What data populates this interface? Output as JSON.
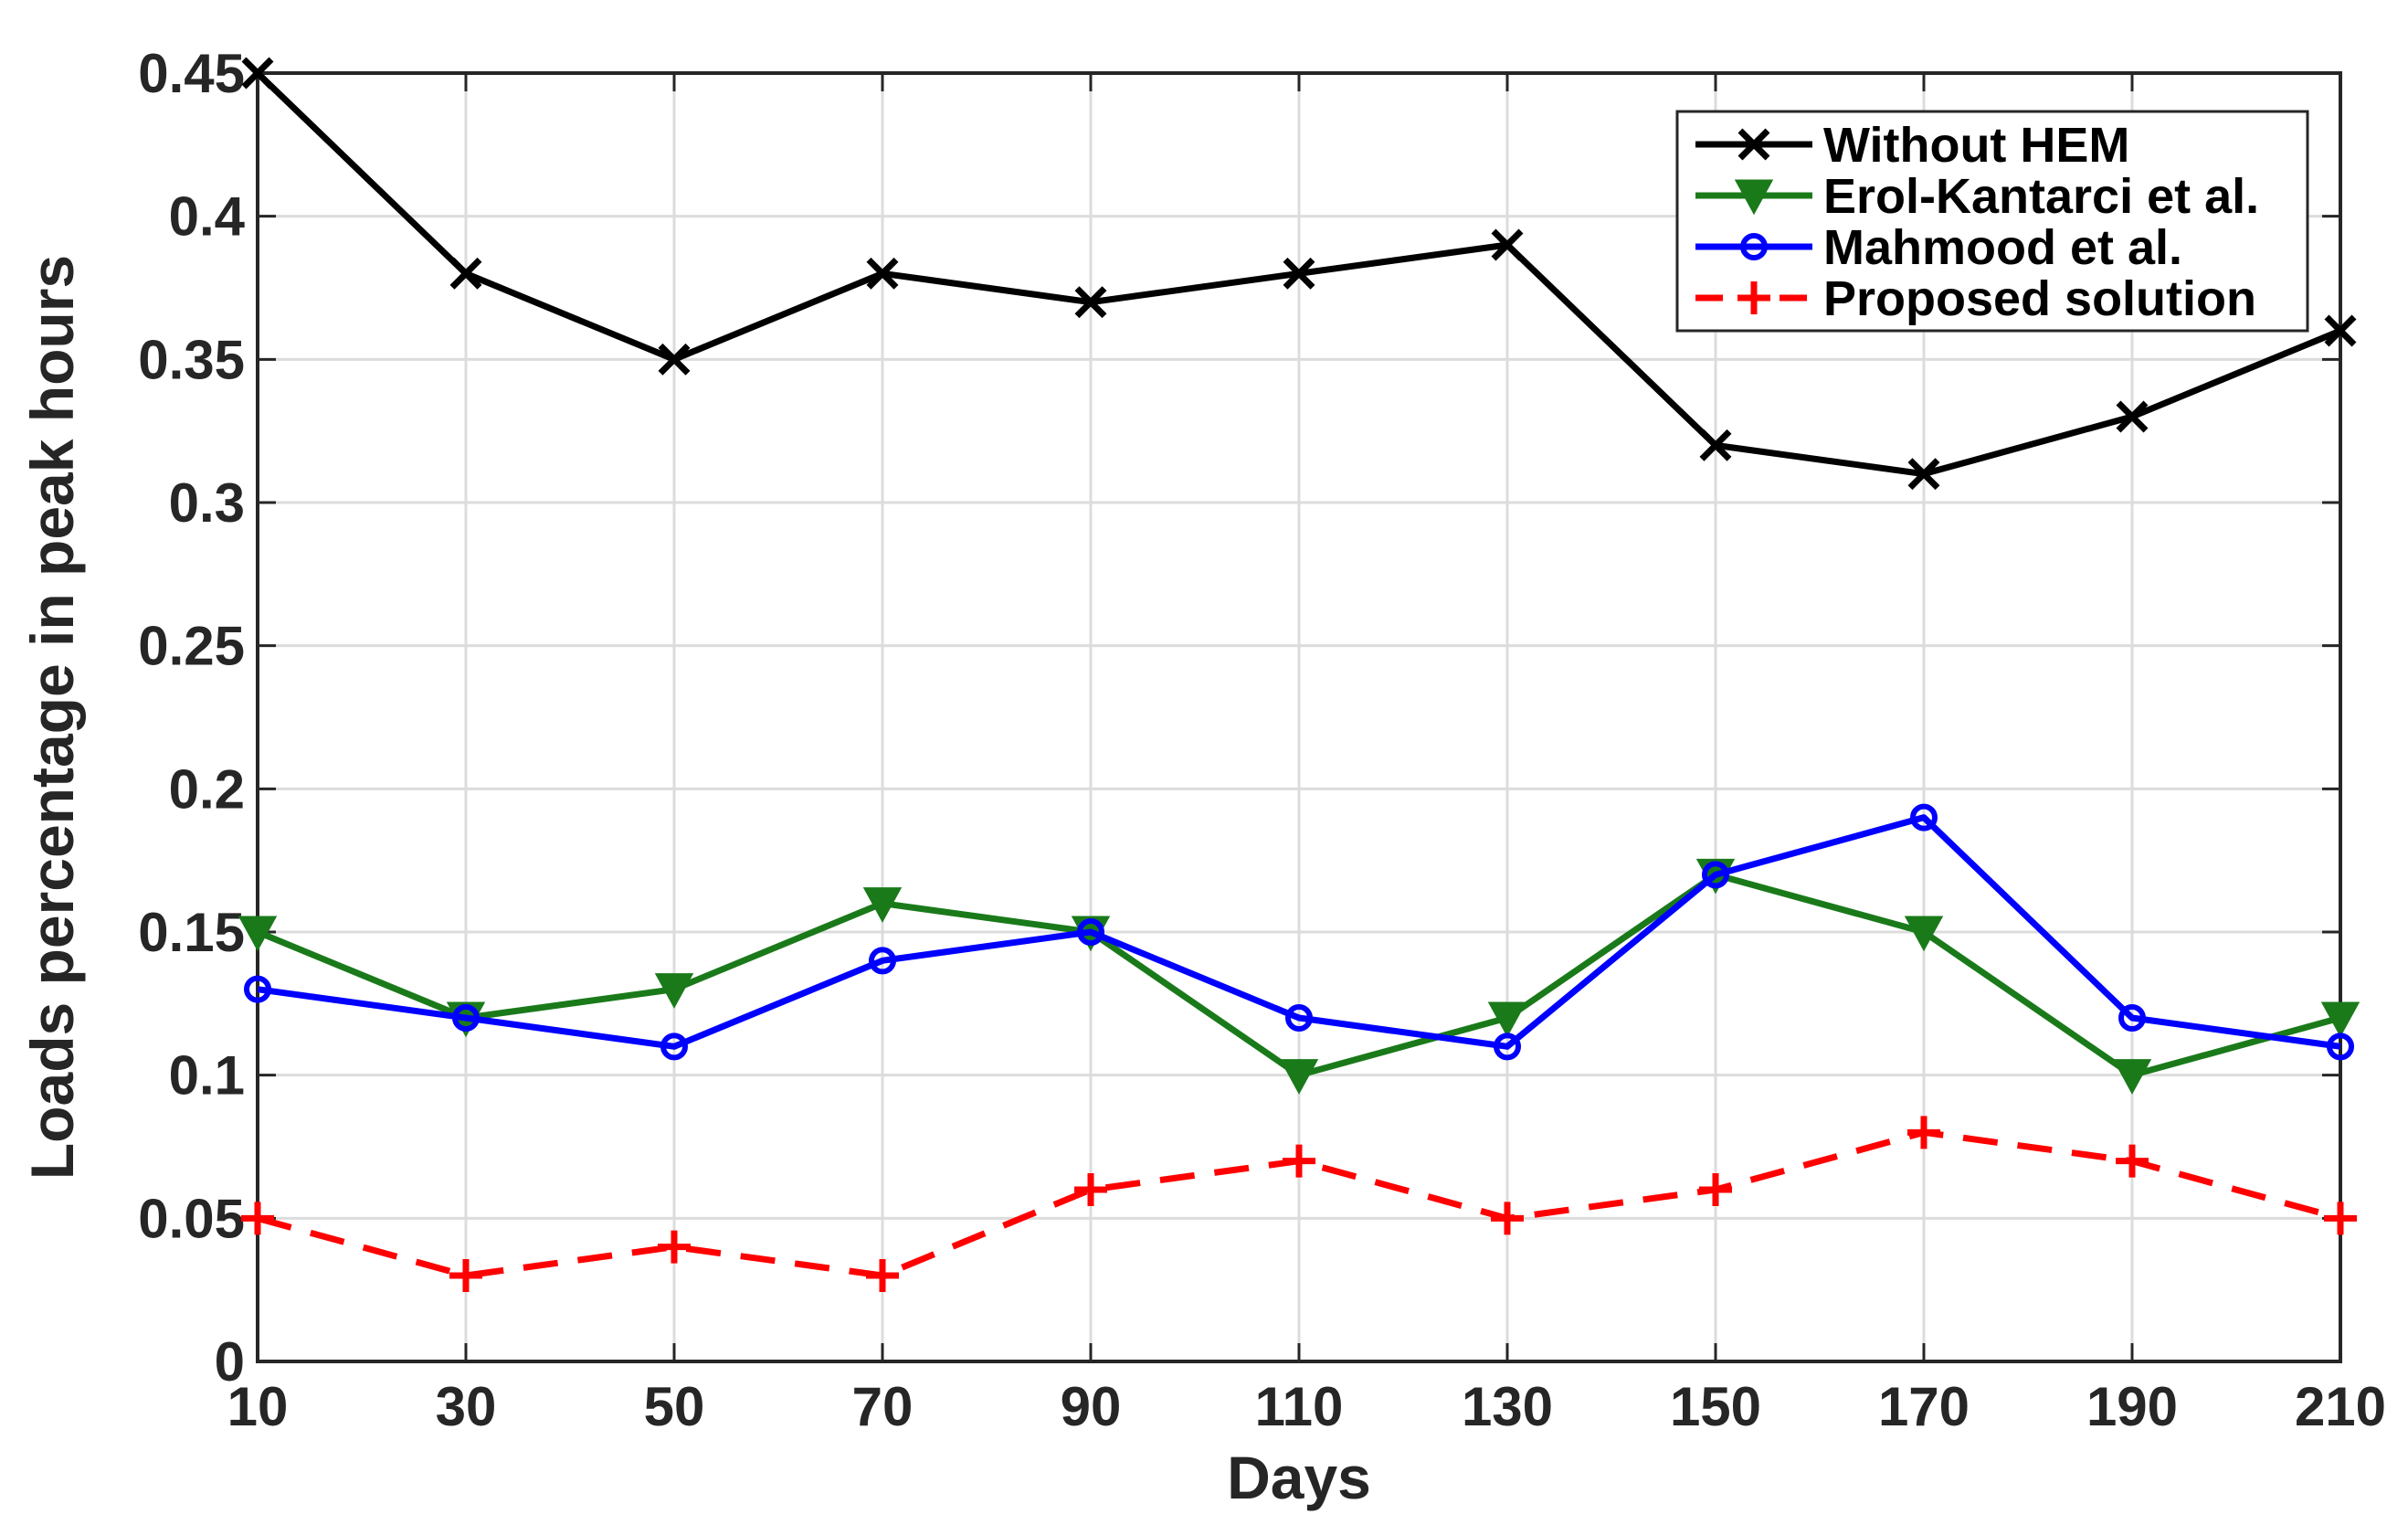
{
  "chart_data": {
    "type": "line",
    "title": "",
    "xlabel": "Days",
    "ylabel": "Loads percentage in peak hours",
    "x": [
      10,
      30,
      50,
      70,
      90,
      110,
      130,
      150,
      170,
      190,
      210
    ],
    "xticks": [
      "10",
      "30",
      "50",
      "70",
      "90",
      "110",
      "130",
      "150",
      "170",
      "190",
      "210"
    ],
    "yticks": [
      "0",
      "0.05",
      "0.1",
      "0.15",
      "0.2",
      "0.25",
      "0.3",
      "0.35",
      "0.4",
      "0.45"
    ],
    "xlim": [
      10,
      210
    ],
    "ylim": [
      0,
      0.45
    ],
    "grid": true,
    "legend_position": "top-right",
    "series": [
      {
        "name": "Without HEM",
        "color": "#000000",
        "marker": "x",
        "dash": "solid",
        "values": [
          0.45,
          0.38,
          0.35,
          0.38,
          0.37,
          0.38,
          0.39,
          0.32,
          0.31,
          0.33,
          0.36
        ]
      },
      {
        "name": "Erol-Kantarci et al.",
        "color": "#1a7a1a",
        "marker": "triangle-down",
        "dash": "solid",
        "values": [
          0.15,
          0.12,
          0.13,
          0.16,
          0.15,
          0.1,
          0.12,
          0.17,
          0.15,
          0.1,
          0.12
        ]
      },
      {
        "name": "Mahmood et al.",
        "color": "#0000ff",
        "marker": "circle",
        "dash": "solid",
        "values": [
          0.13,
          0.12,
          0.11,
          0.14,
          0.15,
          0.12,
          0.11,
          0.17,
          0.19,
          0.12,
          0.11
        ]
      },
      {
        "name": "Proposed solution",
        "color": "#ff0000",
        "marker": "plus",
        "dash": "dashed",
        "values": [
          0.05,
          0.03,
          0.04,
          0.03,
          0.06,
          0.07,
          0.05,
          0.06,
          0.08,
          0.07,
          0.05
        ]
      }
    ]
  }
}
